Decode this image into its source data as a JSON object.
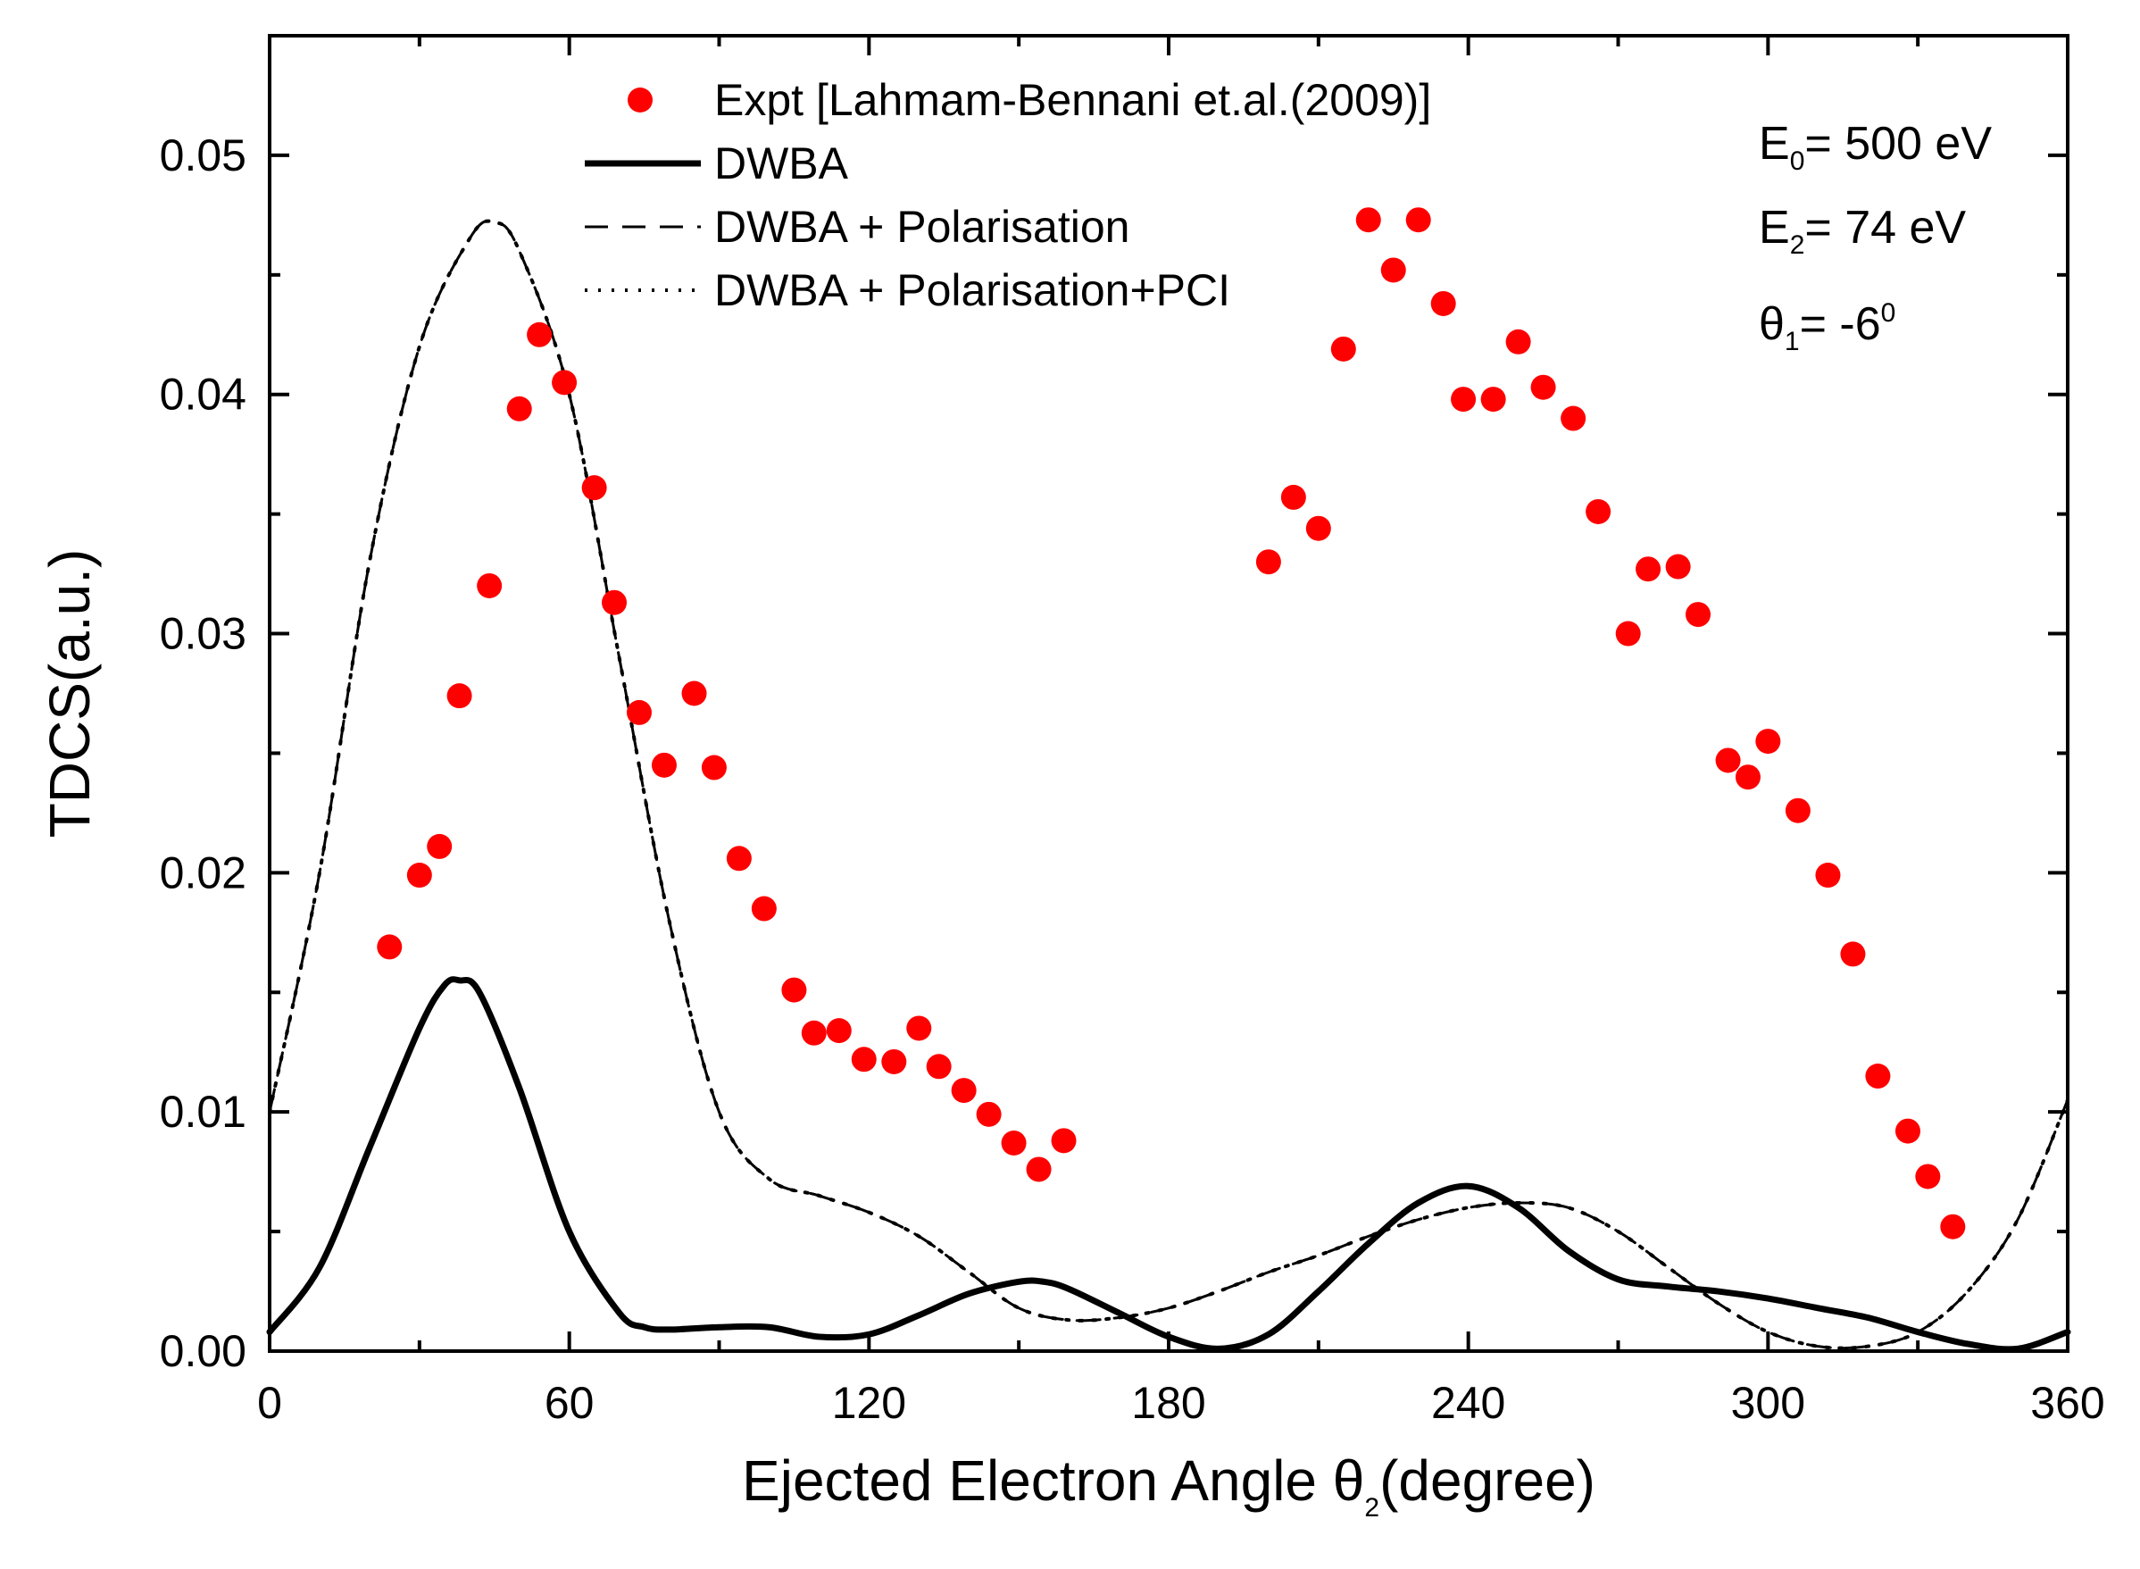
{
  "chart_data": {
    "type": "scatter",
    "title": "",
    "xlabel": "Ejected Electron Angle θ",
    "xlabel_sub": "2",
    "xlabel_suffix": "(degree)",
    "ylabel": "TDCS(a.u.)",
    "xlim": [
      0,
      360
    ],
    "ylim": [
      0,
      0.055
    ],
    "x_ticks": [
      0,
      60,
      120,
      180,
      240,
      300,
      360
    ],
    "x_tick_labels": [
      "0",
      "60",
      "120",
      "180",
      "240",
      "300",
      "360"
    ],
    "y_ticks": [
      0,
      0.01,
      0.02,
      0.03,
      0.04,
      0.05
    ],
    "y_tick_labels": [
      "0.00",
      "0.01",
      "0.02",
      "0.03",
      "0.04",
      "0.05"
    ],
    "grid": false,
    "legend_position": "top-center",
    "parameters": {
      "e0": {
        "symbol": "E",
        "sub": "0",
        "text": "= 500 eV"
      },
      "e2": {
        "symbol": "E",
        "sub": "2",
        "text": "= 74 eV"
      },
      "theta1": {
        "symbol": "θ",
        "sub": "1",
        "text": "= -6",
        "sup": "0"
      }
    },
    "series": [
      {
        "name": "Expt [Lahmam-Bennani et.al.(2009)]",
        "style": "markers",
        "color": "#ff0000",
        "x": [
          24,
          30,
          34,
          38,
          44,
          50,
          54,
          59,
          65,
          69,
          74,
          79,
          85,
          89,
          94,
          99,
          105,
          109,
          114,
          119,
          125,
          130,
          134,
          139,
          144,
          149,
          154,
          159,
          200,
          205,
          210,
          215,
          220,
          225,
          230,
          235,
          239,
          245,
          250,
          255,
          261,
          266,
          272,
          276,
          282,
          286,
          292,
          296,
          300,
          306,
          312,
          317,
          322,
          328,
          332,
          337
        ],
        "y": [
          0.0169,
          0.0199,
          0.0211,
          0.0274,
          0.032,
          0.0394,
          0.0425,
          0.0405,
          0.0361,
          0.0313,
          0.0267,
          0.0245,
          0.0275,
          0.0244,
          0.0206,
          0.0185,
          0.0151,
          0.0133,
          0.0134,
          0.0122,
          0.0121,
          0.0135,
          0.0119,
          0.0109,
          0.0099,
          0.0087,
          0.0076,
          0.0088,
          0.033,
          0.0357,
          0.0344,
          0.0419,
          0.0473,
          0.0452,
          0.0473,
          0.0438,
          0.0398,
          0.0398,
          0.0422,
          0.0403,
          0.039,
          0.0351,
          0.03,
          0.0327,
          0.0328,
          0.0308,
          0.0247,
          0.024,
          0.0255,
          0.0226,
          0.0199,
          0.0166,
          0.0115,
          0.0092,
          0.0073,
          0.0052
        ]
      },
      {
        "name": "DWBA",
        "style": "solid",
        "color": "#000000",
        "x": [
          0,
          10,
          20,
          30,
          35,
          38,
          42,
          50,
          60,
          70,
          75,
          80,
          90,
          100,
          110,
          120,
          130,
          140,
          150,
          155,
          160,
          170,
          180,
          190,
          200,
          210,
          220,
          230,
          240,
          250,
          260,
          270,
          280,
          290,
          300,
          310,
          320,
          330,
          340,
          350,
          360
        ],
        "y": [
          0.0008,
          0.0035,
          0.0085,
          0.0135,
          0.0153,
          0.0155,
          0.015,
          0.011,
          0.005,
          0.0016,
          0.001,
          0.0009,
          0.001,
          0.001,
          0.0006,
          0.0007,
          0.0015,
          0.0024,
          0.0029,
          0.0029,
          0.0026,
          0.0016,
          0.0006,
          0.0001,
          0.0007,
          0.0025,
          0.0045,
          0.0062,
          0.0069,
          0.006,
          0.0042,
          0.003,
          0.0027,
          0.0025,
          0.0022,
          0.0018,
          0.0014,
          0.0008,
          0.0003,
          0.0001,
          0.0008
        ]
      },
      {
        "name": "DWBA + Polarisation",
        "style": "dashed",
        "color": "#000000",
        "x": [
          0,
          10,
          20,
          30,
          40,
          45,
          50,
          60,
          70,
          80,
          90,
          100,
          110,
          120,
          130,
          140,
          150,
          160,
          170,
          180,
          190,
          200,
          210,
          220,
          230,
          240,
          250,
          260,
          270,
          280,
          290,
          300,
          310,
          320,
          330,
          340,
          350,
          360
        ],
        "y": [
          0.01,
          0.02,
          0.033,
          0.042,
          0.0465,
          0.0472,
          0.046,
          0.04,
          0.029,
          0.018,
          0.01,
          0.0072,
          0.0065,
          0.0058,
          0.0048,
          0.0033,
          0.0018,
          0.0013,
          0.0014,
          0.0018,
          0.0025,
          0.0033,
          0.004,
          0.0048,
          0.0055,
          0.006,
          0.0062,
          0.006,
          0.005,
          0.0035,
          0.002,
          0.0008,
          0.0002,
          0.0002,
          0.0008,
          0.0025,
          0.0055,
          0.0105
        ]
      },
      {
        "name": "DWBA + Polarisation+PCI",
        "style": "dotted",
        "color": "#000000",
        "x": [
          0,
          10,
          20,
          30,
          40,
          45,
          50,
          60,
          70,
          80,
          90,
          100,
          110,
          120,
          130,
          140,
          150,
          160,
          170,
          180,
          190,
          200,
          210,
          220,
          230,
          240,
          250,
          260,
          270,
          280,
          290,
          300,
          310,
          320,
          330,
          340,
          350,
          360
        ],
        "y": [
          0.01,
          0.02,
          0.033,
          0.042,
          0.0465,
          0.0472,
          0.046,
          0.04,
          0.029,
          0.018,
          0.01,
          0.0072,
          0.0065,
          0.0058,
          0.0048,
          0.0033,
          0.0018,
          0.0013,
          0.0014,
          0.0018,
          0.0025,
          0.0033,
          0.004,
          0.0048,
          0.0055,
          0.006,
          0.0062,
          0.006,
          0.005,
          0.0035,
          0.002,
          0.0008,
          0.0002,
          0.0002,
          0.0008,
          0.0025,
          0.0055,
          0.0105
        ]
      }
    ]
  }
}
